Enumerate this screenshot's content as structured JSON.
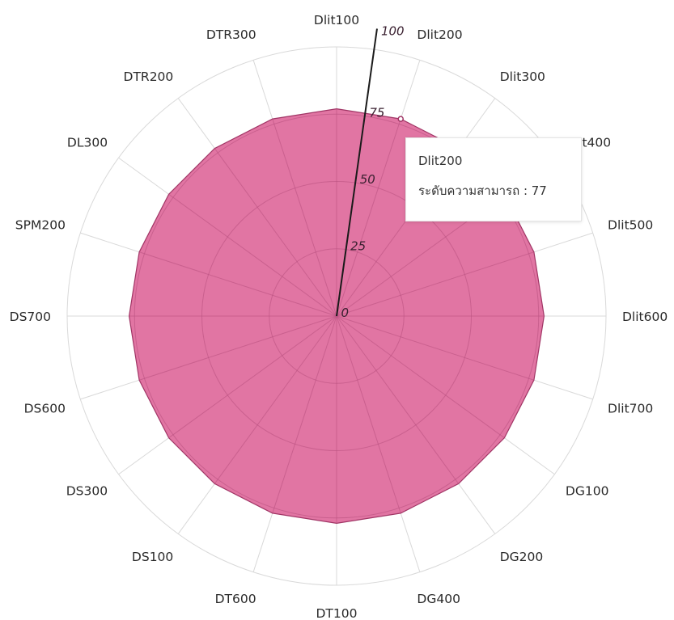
{
  "chart_data": {
    "type": "radar",
    "categories": [
      "Dlit100",
      "Dlit200",
      "Dlit300",
      "Dlit400",
      "Dlit500",
      "Dlit600",
      "Dlit700",
      "DG100",
      "DG200",
      "DG400",
      "DT100",
      "DT600",
      "DS100",
      "DS300",
      "DS600",
      "DS700",
      "SPM200",
      "DL300",
      "DTR200",
      "DTR300"
    ],
    "series": [
      {
        "values": [
          77,
          77,
          77,
          77,
          77,
          77,
          77,
          77,
          77,
          77,
          77,
          77,
          77,
          77,
          77,
          77,
          77,
          77,
          77,
          77
        ]
      }
    ],
    "rlim": [
      0,
      100
    ],
    "radial_ticks": [
      "0",
      "25",
      "50",
      "75",
      "100"
    ],
    "grid": true,
    "colors": {
      "fill": "#df6e9e",
      "stroke": "#a03565",
      "grid": "#d9d9d9",
      "axis": "#1a1a1a"
    },
    "highlight_index": 1,
    "tooltip": {
      "category": "Dlit200",
      "label": "ระดับความสามารถ",
      "separator": " : ",
      "value": "77"
    }
  }
}
